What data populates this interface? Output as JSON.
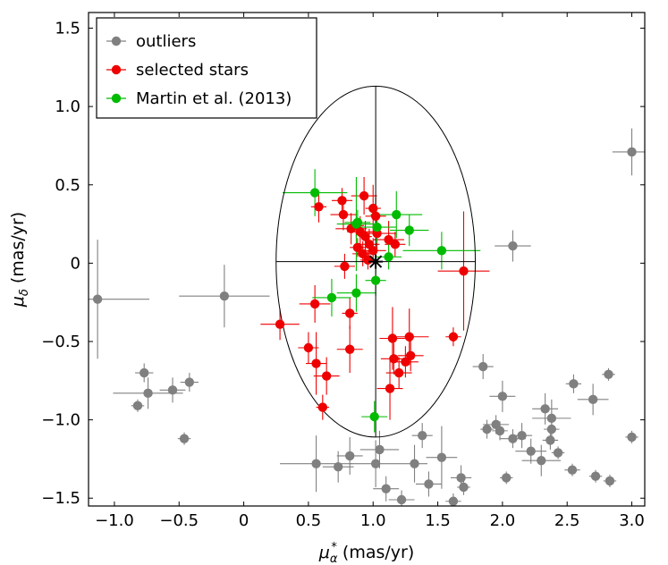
{
  "chart_data": {
    "type": "scatter",
    "title": "",
    "xlabel": {
      "symbol": "μ",
      "sub": "α",
      "sup": "*",
      "unit": " (mas/yr)"
    },
    "ylabel": {
      "symbol": "μ",
      "sub": "δ",
      "unit": " (mas/yr)"
    },
    "xlim": [
      -1.2,
      3.1
    ],
    "ylim": [
      -1.55,
      1.6
    ],
    "xticks": [
      -1.0,
      -0.5,
      0,
      0.5,
      1.0,
      1.5,
      2.0,
      2.5,
      3.0
    ],
    "xtick_labels": [
      "−1.0",
      "−0.5",
      "0",
      "0.5",
      "1.0",
      "1.5",
      "2.0",
      "2.5",
      "3.0"
    ],
    "yticks": [
      -1.5,
      -1.0,
      -0.5,
      0,
      0.5,
      1.0,
      1.5
    ],
    "ytick_labels": [
      "−1.5",
      "−1.0",
      "−0.5",
      "0",
      "0.5",
      "1.0",
      "1.5"
    ],
    "grid": false,
    "legend_position": "top-left",
    "ellipse": {
      "center": [
        1.02,
        0.01
      ],
      "semi_x": 0.77,
      "semi_y": 1.12
    },
    "center_marker": {
      "x": 1.02,
      "y": 0.01,
      "symbol": "asterisk"
    },
    "series": [
      {
        "name": "outliers",
        "color": "#808080",
        "points": [
          [
            -1.13,
            -0.23,
            0.4,
            0.38
          ],
          [
            -0.15,
            -0.21,
            0.35,
            0.2
          ],
          [
            2.08,
            0.11,
            0.14,
            0.1
          ],
          [
            3.0,
            0.71,
            0.15,
            0.15
          ],
          [
            -0.77,
            -0.7,
            0.07,
            0.06
          ],
          [
            -0.82,
            -0.91,
            0.05,
            0.04
          ],
          [
            -0.74,
            -0.83,
            0.27,
            0.1
          ],
          [
            -0.55,
            -0.81,
            0.1,
            0.08
          ],
          [
            -0.42,
            -0.76,
            0.07,
            0.06
          ],
          [
            -0.46,
            -1.12,
            0.05,
            0.04
          ],
          [
            1.85,
            -0.66,
            0.08,
            0.08
          ],
          [
            2.0,
            -0.85,
            0.1,
            0.1
          ],
          [
            1.95,
            -1.03,
            0.1,
            0.06
          ],
          [
            1.88,
            -1.06,
            0.05,
            0.06
          ],
          [
            1.98,
            -1.07,
            0.06,
            0.06
          ],
          [
            2.08,
            -1.12,
            0.1,
            0.06
          ],
          [
            2.15,
            -1.1,
            0.08,
            0.08
          ],
          [
            2.03,
            -1.37,
            0.05,
            0.04
          ],
          [
            2.22,
            -1.2,
            0.12,
            0.08
          ],
          [
            2.3,
            -1.26,
            0.15,
            0.1
          ],
          [
            2.33,
            -0.93,
            0.1,
            0.1
          ],
          [
            2.38,
            -0.99,
            0.15,
            0.12
          ],
          [
            2.38,
            -1.06,
            0.06,
            0.06
          ],
          [
            2.43,
            -1.21,
            0.05,
            0.04
          ],
          [
            2.37,
            -1.13,
            0.06,
            0.06
          ],
          [
            2.55,
            -0.77,
            0.06,
            0.06
          ],
          [
            2.7,
            -0.87,
            0.12,
            0.1
          ],
          [
            2.82,
            -0.71,
            0.05,
            0.04
          ],
          [
            2.54,
            -1.32,
            0.06,
            0.04
          ],
          [
            2.72,
            -1.36,
            0.05,
            0.04
          ],
          [
            2.83,
            -1.39,
            0.05,
            0.04
          ],
          [
            3.0,
            -1.11,
            0.05,
            0.04
          ],
          [
            0.56,
            -1.28,
            0.28,
            0.18
          ],
          [
            0.73,
            -1.3,
            0.12,
            0.1
          ],
          [
            0.82,
            -1.23,
            0.1,
            0.12
          ],
          [
            1.02,
            -1.28,
            0.2,
            0.15
          ],
          [
            1.05,
            -1.19,
            0.15,
            0.12
          ],
          [
            1.1,
            -1.44,
            0.1,
            0.08
          ],
          [
            1.22,
            -1.51,
            0.1,
            0.06
          ],
          [
            1.32,
            -1.28,
            0.1,
            0.12
          ],
          [
            1.38,
            -1.1,
            0.08,
            0.08
          ],
          [
            1.43,
            -1.41,
            0.1,
            0.08
          ],
          [
            1.53,
            -1.24,
            0.12,
            0.2
          ],
          [
            1.68,
            -1.37,
            0.08,
            0.08
          ],
          [
            1.7,
            -1.43,
            0.05,
            0.05
          ],
          [
            1.62,
            -1.52,
            0.06,
            0.05
          ]
        ]
      },
      {
        "name": "selected stars",
        "color": "#ee0000",
        "points": [
          [
            0.58,
            0.36,
            0.06,
            0.1
          ],
          [
            0.76,
            0.4,
            0.08,
            0.08
          ],
          [
            0.77,
            0.31,
            0.1,
            0.1
          ],
          [
            0.93,
            0.43,
            0.1,
            0.12
          ],
          [
            0.83,
            0.22,
            0.12,
            0.1
          ],
          [
            0.87,
            0.24,
            0.06,
            0.08
          ],
          [
            0.9,
            0.2,
            0.1,
            0.1
          ],
          [
            0.94,
            0.17,
            0.05,
            0.1
          ],
          [
            0.97,
            0.12,
            0.08,
            0.1
          ],
          [
            1.0,
            0.35,
            0.06,
            0.15
          ],
          [
            1.02,
            0.3,
            0.08,
            0.12
          ],
          [
            1.03,
            0.19,
            0.15,
            0.1
          ],
          [
            1.0,
            0.08,
            0.1,
            0.08
          ],
          [
            0.92,
            0.06,
            0.08,
            0.08
          ],
          [
            0.88,
            0.1,
            0.06,
            0.06
          ],
          [
            0.96,
            0.02,
            0.06,
            0.06
          ],
          [
            1.12,
            0.15,
            0.12,
            0.12
          ],
          [
            1.17,
            0.12,
            0.08,
            0.08
          ],
          [
            0.78,
            -0.02,
            0.08,
            0.08
          ],
          [
            0.28,
            -0.39,
            0.15,
            0.1
          ],
          [
            0.55,
            -0.26,
            0.12,
            0.12
          ],
          [
            0.82,
            -0.32,
            0.06,
            0.1
          ],
          [
            1.7,
            -0.05,
            0.2,
            0.38
          ],
          [
            0.5,
            -0.54,
            0.08,
            0.1
          ],
          [
            0.56,
            -0.64,
            0.08,
            0.2
          ],
          [
            0.64,
            -0.72,
            0.1,
            0.12
          ],
          [
            0.82,
            -0.55,
            0.1,
            0.15
          ],
          [
            1.15,
            -0.48,
            0.1,
            0.2
          ],
          [
            1.28,
            -0.47,
            0.15,
            0.18
          ],
          [
            1.16,
            -0.61,
            0.1,
            0.1
          ],
          [
            1.29,
            -0.59,
            0.1,
            0.1
          ],
          [
            1.25,
            -0.63,
            0.1,
            0.1
          ],
          [
            1.2,
            -0.7,
            0.1,
            0.1
          ],
          [
            1.62,
            -0.47,
            0.06,
            0.06
          ],
          [
            1.13,
            -0.8,
            0.1,
            0.2
          ],
          [
            0.61,
            -0.92,
            0.05,
            0.08
          ]
        ]
      },
      {
        "name": "Martin et al. (2013)",
        "color": "#00bb00",
        "points": [
          [
            0.55,
            0.45,
            0.25,
            0.15
          ],
          [
            0.87,
            0.25,
            0.15,
            0.3
          ],
          [
            0.88,
            0.26,
            0.1,
            0.08
          ],
          [
            1.03,
            0.23,
            0.15,
            0.1
          ],
          [
            1.18,
            0.31,
            0.2,
            0.15
          ],
          [
            1.28,
            0.21,
            0.15,
            0.1
          ],
          [
            1.53,
            0.08,
            0.3,
            0.12
          ],
          [
            1.12,
            0.04,
            0.1,
            0.08
          ],
          [
            1.02,
            -0.11,
            0.08,
            0.1
          ],
          [
            0.87,
            -0.19,
            0.15,
            0.12
          ],
          [
            0.68,
            -0.22,
            0.15,
            0.12
          ],
          [
            1.01,
            -0.98,
            0.1,
            0.1
          ]
        ]
      }
    ]
  }
}
